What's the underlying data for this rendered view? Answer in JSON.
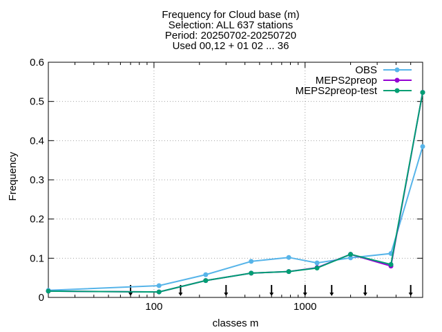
{
  "chart_data": {
    "type": "line",
    "title_lines": [
      "Frequency  for Cloud base (m)",
      "Selection: ALL    637 stations",
      "Period: 20250702-20250720",
      "Used 00,12 + 01 02 ... 36"
    ],
    "xlabel": "classes m",
    "ylabel": "Frequency",
    "xscale": "log",
    "xlim": [
      20,
      6000
    ],
    "ylim": [
      0,
      0.6
    ],
    "x_ticks": [
      100,
      1000
    ],
    "x_tick_labels": [
      "100",
      "1000"
    ],
    "y_ticks": [
      0,
      0.1,
      0.2,
      0.3,
      0.4,
      0.5,
      0.6
    ],
    "y_tick_labels": [
      "0",
      "0.1",
      "0.2",
      "0.3",
      "0.4",
      "0.5",
      "0.6"
    ],
    "grid": true,
    "legend_position": "top-right",
    "class_markers": [
      70,
      150,
      300,
      600,
      1000,
      1500,
      2500,
      5000
    ],
    "x": [
      20,
      108,
      220,
      440,
      780,
      1200,
      2000,
      3700,
      6000
    ],
    "series": [
      {
        "name": "OBS",
        "color": "#56b4e9",
        "marker": "circle",
        "values": [
          0.018,
          0.03,
          0.058,
          0.092,
          0.102,
          0.088,
          0.101,
          0.112,
          0.385
        ]
      },
      {
        "name": "MEPS2preop",
        "color": "#9400d3",
        "marker": "circle",
        "values": [
          0.016,
          0.014,
          0.043,
          0.062,
          0.066,
          0.076,
          0.11,
          0.08,
          0.523
        ]
      },
      {
        "name": "MEPS2preop-test",
        "color": "#009e73",
        "marker": "circle",
        "values": [
          0.016,
          0.014,
          0.043,
          0.062,
          0.066,
          0.075,
          0.11,
          0.084,
          0.523
        ]
      }
    ]
  }
}
